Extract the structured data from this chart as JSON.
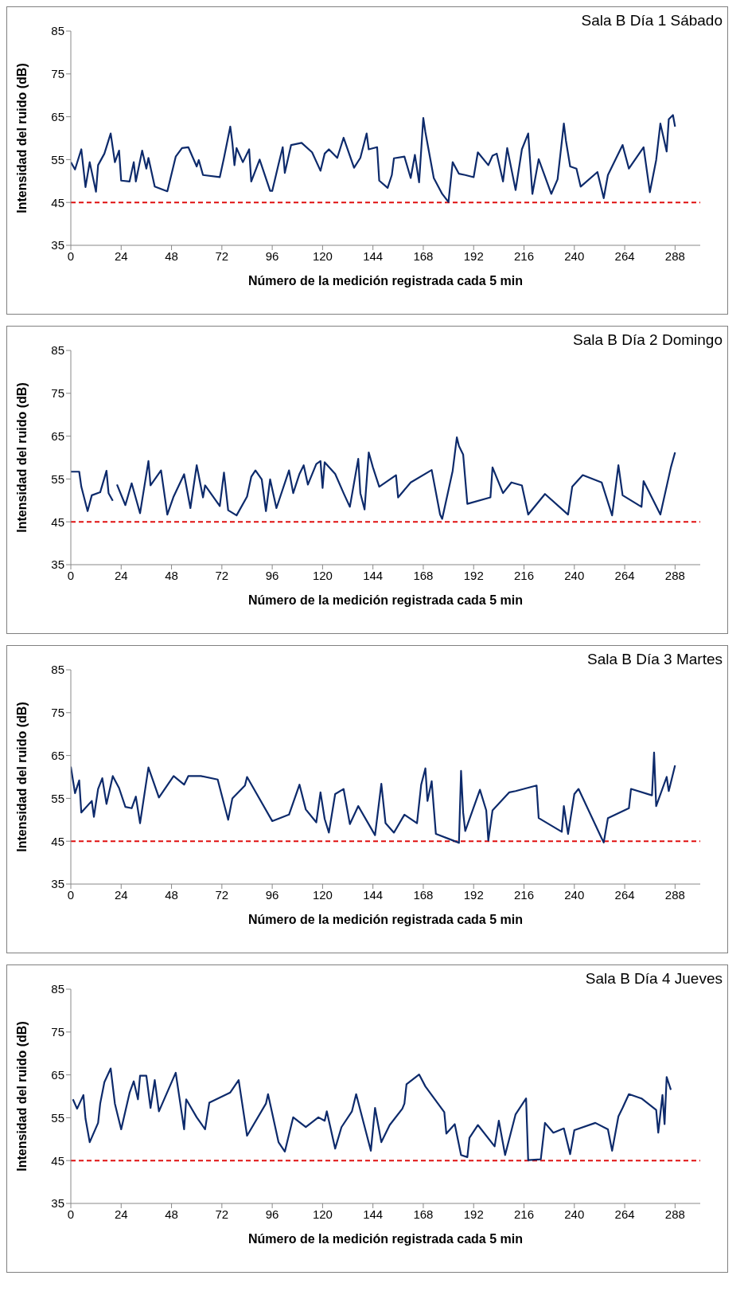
{
  "chart_data": [
    {
      "type": "line",
      "title": "Sala B Día 1 Sábado",
      "xlabel": "Número de la medición registrada cada 5 min",
      "ylabel": "Intensidad del ruido (dB)",
      "xlim": [
        0,
        300
      ],
      "xticks": [
        0,
        24,
        48,
        72,
        96,
        120,
        144,
        168,
        192,
        216,
        240,
        264,
        288
      ],
      "ylim": [
        35,
        85
      ],
      "yticks": [
        35,
        45,
        55,
        65,
        75,
        85
      ],
      "ref_lines": [
        {
          "axis": "y",
          "value": 45,
          "color": "#e01010",
          "line_style": "dashed"
        }
      ],
      "series": [
        {
          "color": "#0d2a6b",
          "x": [
            0,
            2,
            5,
            7,
            9,
            12,
            13,
            16,
            19,
            21,
            23,
            24,
            28,
            30,
            31,
            34,
            36,
            37,
            40,
            46,
            50,
            53,
            56,
            60,
            61,
            63,
            71,
            73,
            76,
            77,
            78,
            79,
            82,
            85,
            86,
            90,
            95,
            96,
            99,
            101,
            102,
            105,
            110,
            115,
            119,
            121,
            123,
            127,
            130,
            135,
            138,
            141,
            142,
            146,
            147,
            151,
            153,
            154,
            159,
            162,
            164,
            166,
            168,
            169,
            173,
            177,
            180,
            182,
            185,
            188,
            192,
            194,
            199,
            201,
            203,
            206,
            208,
            212,
            215,
            218,
            220,
            223,
            229,
            232,
            235,
            236,
            238,
            241,
            243,
            251,
            254,
            256,
            263,
            266,
            273,
            276,
            279,
            281,
            284,
            285,
            287,
            288
          ],
          "values": [
            54.4,
            52.7,
            57.4,
            48.6,
            54.4,
            47.5,
            53.7,
            56.4,
            61.1,
            54.4,
            57.1,
            50.1,
            49.9,
            54.4,
            49.9,
            57.1,
            52.9,
            55.4,
            48.7,
            47.6,
            55.7,
            57.7,
            57.9,
            53.4,
            54.9,
            51.4,
            50.9,
            55.4,
            62.7,
            58.9,
            53.7,
            57.7,
            54.4,
            57.4,
            49.9,
            55,
            47.7,
            47.7,
            53.9,
            57.9,
            51.9,
            58.4,
            58.9,
            56.7,
            52.4,
            56.4,
            57.4,
            55.4,
            60.1,
            53.1,
            55.4,
            61.1,
            57.4,
            57.9,
            50.1,
            48.4,
            51.4,
            55.3,
            55.7,
            50.7,
            56.1,
            49.7,
            64.7,
            61.4,
            50.7,
            47,
            45.1,
            54.4,
            51.7,
            51.4,
            50.9,
            56.7,
            53.7,
            55.9,
            56.4,
            49.9,
            57.7,
            47.9,
            57.4,
            61.1,
            47,
            55.1,
            47,
            50.4,
            63.4,
            59.4,
            53.4,
            52.9,
            48.7,
            52.1,
            46,
            51.4,
            58.4,
            52.9,
            57.9,
            47.4,
            54.9,
            63.4,
            56.9,
            64.4,
            65.4,
            62.7
          ]
        }
      ]
    },
    {
      "type": "line",
      "title": "Sala B Día 2 Domingo",
      "xlabel": "Número de la medición registrada cada 5 min",
      "ylabel": "Intensidad del ruido (dB)",
      "xlim": [
        0,
        300
      ],
      "xticks": [
        0,
        24,
        48,
        72,
        96,
        120,
        144,
        168,
        192,
        216,
        240,
        264,
        288
      ],
      "ylim": [
        35,
        85
      ],
      "yticks": [
        35,
        45,
        55,
        65,
        75,
        85
      ],
      "ref_lines": [
        {
          "axis": "y",
          "value": 45,
          "color": "#e01010",
          "line_style": "dashed"
        }
      ],
      "series": [
        {
          "color": "#0d2a6b",
          "x": [
            0,
            4,
            5,
            8,
            10,
            14,
            17,
            18,
            20,
            21,
            22,
            26,
            29,
            33,
            37,
            38,
            43,
            46,
            49,
            54,
            57,
            60,
            63,
            64,
            71,
            73,
            75,
            79,
            84,
            86,
            88,
            91,
            93,
            95,
            98,
            104,
            106,
            109,
            111,
            113,
            117,
            119,
            120,
            121,
            126,
            130,
            133,
            137,
            138,
            140,
            142,
            144,
            147,
            155,
            156,
            162,
            172,
            176,
            177,
            182,
            184,
            185,
            187,
            189,
            200,
            201,
            206,
            210,
            215,
            218,
            226,
            237,
            239,
            244,
            253,
            258,
            261,
            263,
            272,
            273,
            281,
            286,
            288
          ],
          "values": [
            56.7,
            56.7,
            53.2,
            47.5,
            51.2,
            51.9,
            56.9,
            51.7,
            49.9,
            null,
            53.7,
            48.9,
            54,
            47,
            59.2,
            53.5,
            57,
            46.7,
            50.9,
            56.1,
            48.2,
            58.2,
            50.7,
            53.5,
            48.7,
            56.5,
            47.7,
            46.5,
            50.9,
            55.5,
            57,
            54.9,
            47.5,
            54.9,
            48.2,
            57,
            51.7,
            56.2,
            58.2,
            53.7,
            58.5,
            59.2,
            52.9,
            58.9,
            56.2,
            51.7,
            48.5,
            59.7,
            51.7,
            47.9,
            61.2,
            57.7,
            53.2,
            55.9,
            50.7,
            54.2,
            57.1,
            46.7,
            45.7,
            56.9,
            64.7,
            62.7,
            60.7,
            49.2,
            50.7,
            57.7,
            51.7,
            54.2,
            53.5,
            46.7,
            51.5,
            46.7,
            53.2,
            55.9,
            54.2,
            46.5,
            58.2,
            51.2,
            48.5,
            54.5,
            46.7,
            57.7,
            61.2
          ]
        }
      ]
    },
    {
      "type": "line",
      "title": "Sala B Día 3 Martes",
      "xlabel": "Número de la medición registrada cada 5 min",
      "ylabel": "Intensidad del ruido (dB)",
      "xlim": [
        0,
        300
      ],
      "xticks": [
        0,
        24,
        48,
        72,
        96,
        120,
        144,
        168,
        192,
        216,
        240,
        264,
        288
      ],
      "ylim": [
        35,
        85
      ],
      "yticks": [
        35,
        45,
        55,
        65,
        75,
        85
      ],
      "ref_lines": [
        {
          "axis": "y",
          "value": 45,
          "color": "#e01010",
          "line_style": "dashed"
        }
      ],
      "series": [
        {
          "color": "#0d2a6b",
          "x": [
            0,
            2,
            4,
            5,
            10,
            11,
            13,
            15,
            17,
            20,
            23,
            26,
            29,
            31,
            33,
            37,
            42,
            49,
            54,
            56,
            62,
            70,
            75,
            77,
            83,
            84,
            96,
            104,
            109,
            112,
            117,
            119,
            121,
            123,
            126,
            130,
            133,
            137,
            145,
            148,
            150,
            154,
            159,
            165,
            167,
            169,
            170,
            172,
            174,
            182,
            185,
            186,
            187,
            188,
            195,
            198,
            199,
            201,
            209,
            212,
            222,
            223,
            234,
            235,
            237,
            240,
            242,
            253,
            254,
            256,
            266,
            267,
            277,
            278,
            279,
            284,
            285,
            288
          ],
          "values": [
            62.4,
            56.2,
            59.2,
            51.7,
            54.4,
            50.7,
            57.2,
            59.7,
            53.7,
            60.2,
            57.4,
            53,
            52.7,
            55.4,
            49.2,
            62.2,
            55.2,
            60.2,
            58.2,
            60.2,
            60.2,
            59.4,
            50,
            55,
            58,
            60,
            49.7,
            51.2,
            58.2,
            52.4,
            49.4,
            56.4,
            50.2,
            47,
            56,
            57.2,
            49,
            53.2,
            46.4,
            58.4,
            49.2,
            47,
            51.2,
            49.2,
            58.2,
            62,
            54.4,
            59,
            46.7,
            45.2,
            44.6,
            61.4,
            51.7,
            47.4,
            57,
            52.2,
            45.2,
            52.2,
            56.4,
            56.7,
            58,
            50.4,
            47.2,
            53.2,
            46.7,
            56,
            57.2,
            45.7,
            44.7,
            50.4,
            52.7,
            57.2,
            55.7,
            65.7,
            53.2,
            60,
            56.7,
            62.7
          ]
        }
      ]
    },
    {
      "type": "line",
      "title": "Sala B Día 4 Jueves",
      "xlabel": "Número de la medición registrada cada 5 min",
      "ylabel": "Intensidad del ruido (dB)",
      "xlim": [
        0,
        300
      ],
      "xticks": [
        0,
        24,
        48,
        72,
        96,
        120,
        144,
        168,
        192,
        216,
        240,
        264,
        288
      ],
      "ylim": [
        35,
        85
      ],
      "yticks": [
        35,
        45,
        55,
        65,
        75,
        85
      ],
      "ref_lines": [
        {
          "axis": "y",
          "value": 45,
          "color": "#e01010",
          "line_style": "dashed"
        }
      ],
      "series": [
        {
          "color": "#0d2a6b",
          "x": [
            1,
            3,
            6,
            7,
            9,
            13,
            14,
            16,
            19,
            21,
            24,
            28,
            30,
            32,
            33,
            36,
            38,
            40,
            42,
            50,
            54,
            55,
            60,
            64,
            66,
            76,
            80,
            84,
            93,
            94,
            99,
            102,
            106,
            112,
            118,
            121,
            122,
            126,
            129,
            134,
            136,
            143,
            145,
            148,
            152,
            158,
            159,
            160,
            166,
            169,
            178,
            179,
            183,
            186,
            189,
            190,
            194,
            202,
            204,
            207,
            212,
            217,
            218,
            224,
            226,
            230,
            235,
            238,
            240,
            250,
            256,
            258,
            261,
            263,
            266,
            272,
            279,
            280,
            282,
            283,
            284,
            286
          ],
          "values": [
            59.3,
            57.1,
            60.3,
            54.8,
            49.3,
            53.8,
            58.3,
            63.3,
            66.5,
            58.3,
            52.3,
            60.8,
            63.5,
            59.3,
            64.8,
            64.8,
            57.3,
            63.8,
            56.5,
            65.5,
            52.3,
            59.3,
            55.1,
            52.3,
            58.5,
            60.9,
            63.8,
            50.8,
            58.3,
            60.5,
            49.3,
            47.1,
            55.1,
            52.8,
            55.1,
            54.3,
            56.5,
            47.8,
            52.8,
            56.5,
            60.5,
            47.3,
            57.3,
            49.3,
            53.3,
            57.1,
            58.3,
            62.8,
            65.1,
            62.3,
            56.3,
            51.3,
            53.5,
            46.3,
            45.8,
            50.3,
            53.3,
            48.3,
            54.3,
            46.3,
            55.8,
            59.5,
            45.1,
            45.3,
            53.8,
            51.5,
            52.5,
            46.5,
            52.1,
            53.8,
            52.3,
            47.3,
            55.3,
            57.3,
            60.5,
            59.5,
            56.8,
            51.5,
            60.3,
            53.5,
            64.5,
            61.5
          ]
        }
      ]
    }
  ]
}
